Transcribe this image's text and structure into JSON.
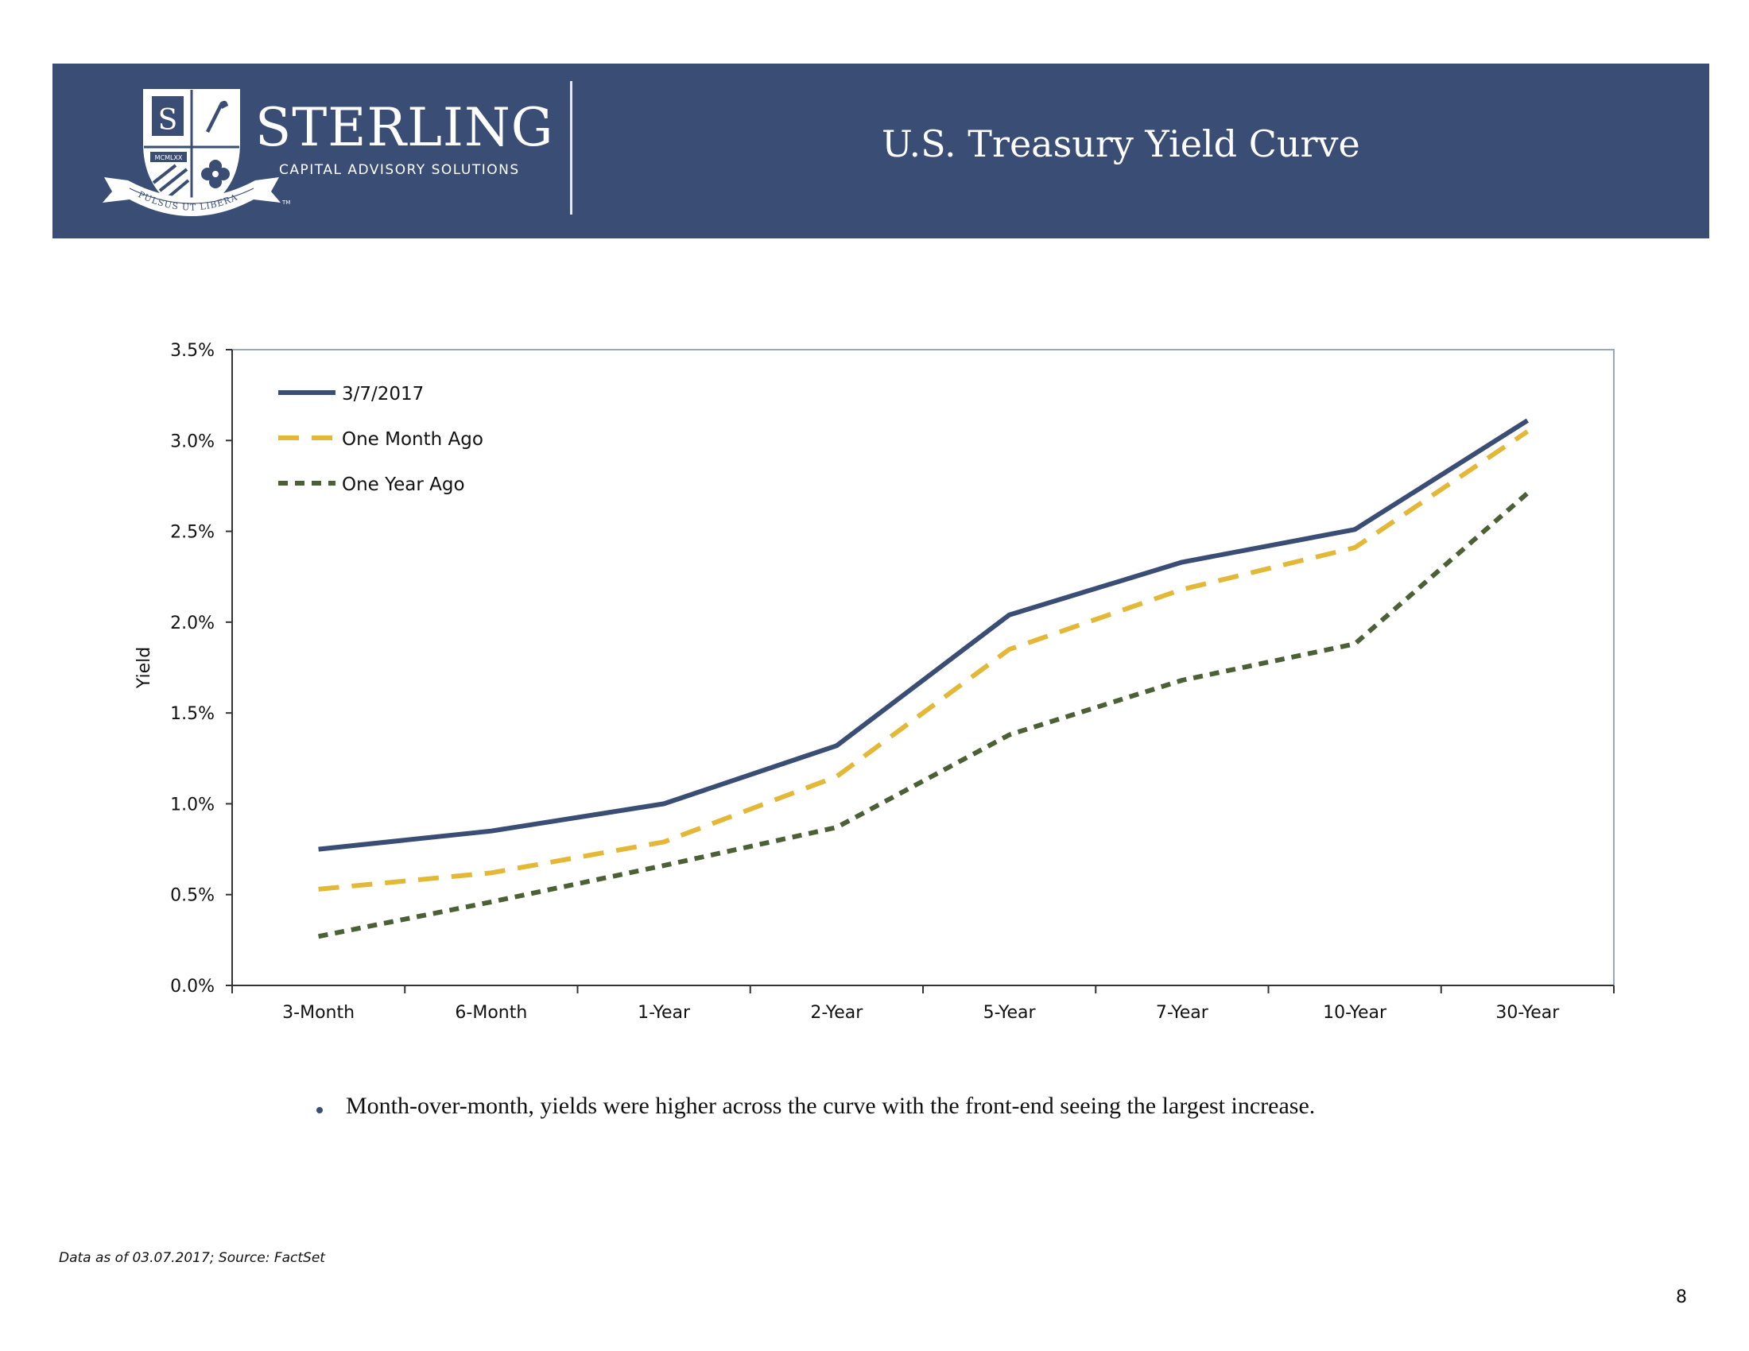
{
  "header": {
    "brand_name": "STERLING",
    "brand_tagline": "CAPITAL ADVISORY SOLUTIONS",
    "crest_initial": "S",
    "crest_year": "MCMLXX",
    "crest_motto": "PULSUS UT LIBERA",
    "trademark": "TM",
    "title": "U.S. Treasury Yield Curve",
    "colors": {
      "banner": "#394d75",
      "text": "#ffffff"
    }
  },
  "chart_data": {
    "type": "line",
    "title": "",
    "xlabel": "",
    "ylabel": "Yield",
    "categories": [
      "3-Month",
      "6-Month",
      "1-Year",
      "2-Year",
      "5-Year",
      "7-Year",
      "10-Year",
      "30-Year"
    ],
    "ylim": [
      0,
      3.5
    ],
    "yticks": [
      0,
      0.5,
      1.0,
      1.5,
      2.0,
      2.5,
      3.0,
      3.5
    ],
    "ytick_labels": [
      "0.0%",
      "0.5%",
      "1.0%",
      "1.5%",
      "2.0%",
      "2.5%",
      "3.0%",
      "3.5%"
    ],
    "grid": false,
    "legend_position": "top-left",
    "series": [
      {
        "name": "3/7/2017",
        "style": "solid",
        "color": "#394d75",
        "values": [
          0.75,
          0.85,
          1.0,
          1.32,
          2.04,
          2.33,
          2.51,
          3.11
        ]
      },
      {
        "name": "One Month Ago",
        "style": "long-dash",
        "color": "#e4b837",
        "values": [
          0.53,
          0.62,
          0.79,
          1.15,
          1.85,
          2.18,
          2.41,
          3.05
        ]
      },
      {
        "name": "One Year Ago",
        "style": "short-dash",
        "color": "#4b6035",
        "values": [
          0.27,
          0.46,
          0.66,
          0.87,
          1.38,
          1.68,
          1.88,
          2.71
        ]
      }
    ]
  },
  "body": {
    "takeaway": "Month-over-month, yields were higher across the curve with the front-end seeing the largest increase."
  },
  "footer": {
    "note": "Data as of 03.07.2017;  Source: FactSet",
    "page": "8"
  }
}
